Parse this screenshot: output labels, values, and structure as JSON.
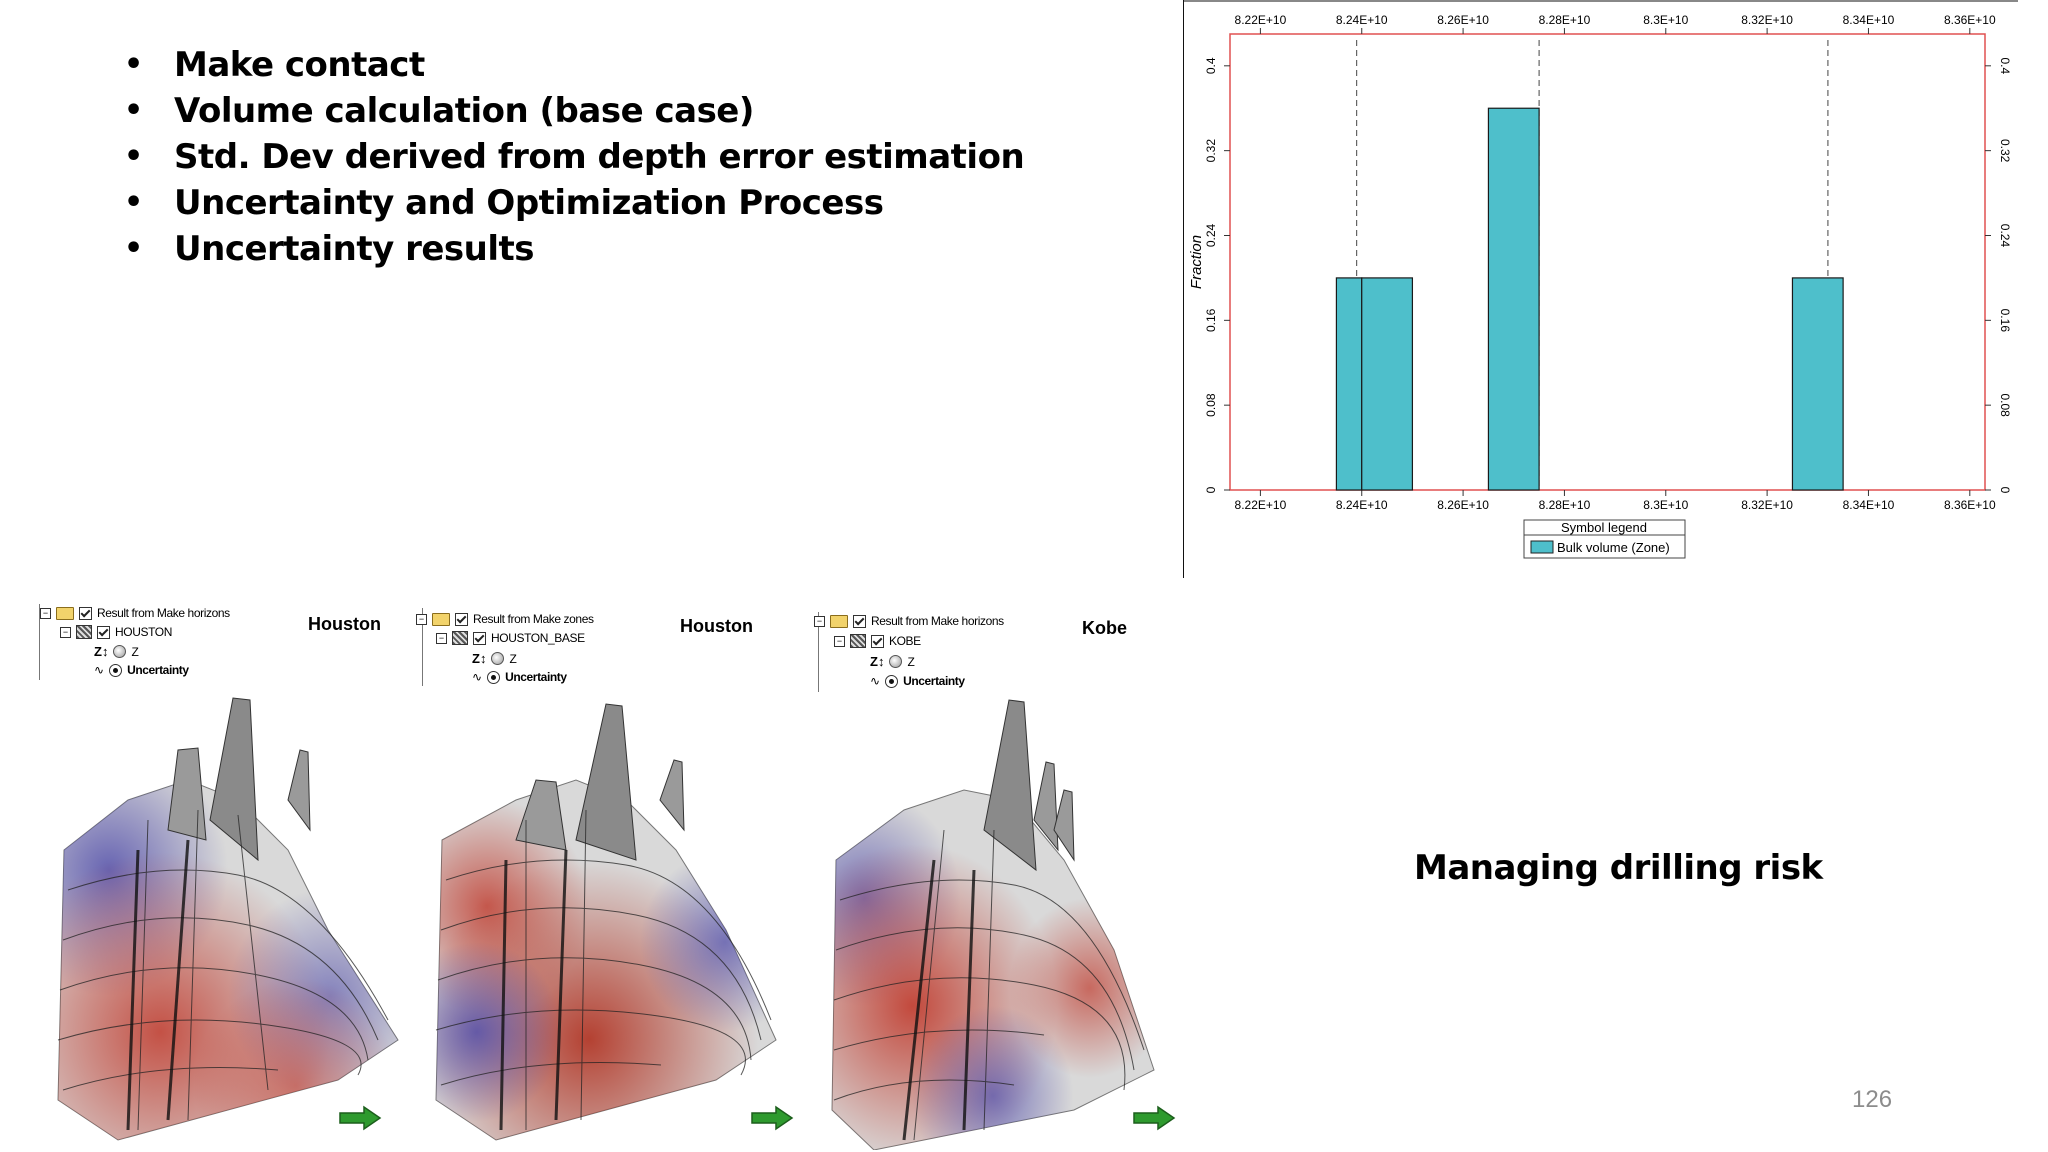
{
  "slide": {
    "bullets": [
      "Make contact",
      "Volume calculation (base case)",
      "Std. Dev derived from depth error estimation",
      "Uncertainty and Optimization Process",
      "Uncertainty results"
    ],
    "title": "Managing drilling risk",
    "page_number": "126"
  },
  "viewers": [
    {
      "name": "Houston",
      "tree": {
        "root": "Result from Make horizons",
        "surface": "HOUSTON",
        "attr_z": "Z",
        "attr_uncertainty": "Uncertainty"
      },
      "arrow_icon": "green-arrow-icon"
    },
    {
      "name": "Houston",
      "tree": {
        "root": "Result from Make zones",
        "surface": "HOUSTON_BASE",
        "attr_z": "Z",
        "attr_uncertainty": "Uncertainty"
      },
      "arrow_icon": "green-arrow-icon"
    },
    {
      "name": "Kobe",
      "tree": {
        "root": "Result from Make horizons",
        "surface": "KOBE",
        "attr_z": "Z",
        "attr_uncertainty": "Uncertainty"
      },
      "arrow_icon": "green-arrow-icon"
    }
  ],
  "chart_data": {
    "type": "bar",
    "x_ticks": [
      "8.22E+10",
      "8.24E+10",
      "8.26E+10",
      "8.28E+10",
      "8.3E+10",
      "8.32E+10",
      "8.34E+10",
      "8.36E+10"
    ],
    "x_tick_values": [
      82200000000,
      82400000000,
      82600000000,
      82800000000,
      83000000000,
      83200000000,
      83400000000,
      83600000000
    ],
    "xlim": [
      82140000000,
      83630000000
    ],
    "y_ticks": [
      "0",
      "0.08",
      "0.16",
      "0.24",
      "0.32",
      "0.4"
    ],
    "y_tick_values": [
      0,
      0.08,
      0.16,
      0.24,
      0.32,
      0.4
    ],
    "ylim": [
      0,
      0.43
    ],
    "ylabel": "Fraction",
    "bars": [
      {
        "x0": 82350000000,
        "x1": 82400000000,
        "value": 0.2
      },
      {
        "x0": 82400000000,
        "x1": 82500000000,
        "value": 0.2
      },
      {
        "x0": 82650000000,
        "x1": 82750000000,
        "value": 0.36
      },
      {
        "x0": 83250000000,
        "x1": 83350000000,
        "value": 0.2
      }
    ],
    "markers_x": [
      82390000000,
      82750000000,
      83320000000
    ],
    "legend": {
      "title": "Symbol legend",
      "entries": [
        "Bulk volume (Zone)"
      ]
    },
    "colors": {
      "bar": "#4ebfcb",
      "bar_edge": "#1a1a1a",
      "axis_frame": "#e05050",
      "grid": "#cccccc"
    }
  }
}
